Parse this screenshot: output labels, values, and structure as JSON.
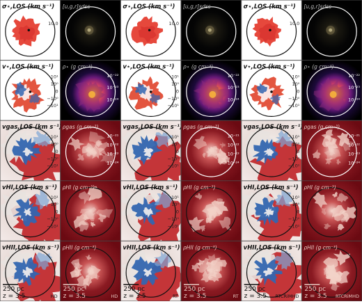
{
  "grid": {
    "rows": [
      {
        "id": "sigma",
        "vel_label": "σ⋆,LOS (km s⁻¹)",
        "vel_ticks": [
          "10.0"
        ],
        "den_label": "[u,g,r]sdss",
        "den_ticks": [],
        "den_style": "dark"
      },
      {
        "id": "vstar",
        "vel_label": "v⋆,LOS (km s⁻¹)",
        "vel_ticks": [
          "10¹",
          "10⁰",
          "0",
          "−10⁰",
          "−10¹"
        ],
        "den_label": "ρ⋆ (g cm⁻³)",
        "den_ticks": [
          "10⁻²²",
          "10⁻²³",
          "10⁻²⁴"
        ],
        "den_style": "stellar"
      },
      {
        "id": "vgas",
        "vel_label": "vgas,LOS (km s⁻¹)",
        "vel_ticks": [
          "10¹",
          "10⁰",
          "0",
          "−10⁰",
          "−10¹"
        ],
        "den_label": "ρgas (g cm⁻³)",
        "den_ticks": [
          "10⁻²¹",
          "10⁻²²",
          "10⁻²³",
          "10⁻²⁴"
        ],
        "den_style": "gas"
      },
      {
        "id": "vhi",
        "vel_label": "vHI,LOS (km s⁻¹)",
        "vel_ticks": [
          "10¹",
          "10⁰",
          "0",
          "−10⁰",
          "−10¹"
        ],
        "den_label": "ρHI (g cm⁻³)",
        "den_ticks": [],
        "den_style": "gas"
      },
      {
        "id": "vhii",
        "vel_label": "vHII,LOS (km s⁻¹)",
        "vel_ticks": [],
        "den_label": "ρHII (g cm⁻³)",
        "den_ticks": [],
        "den_style": "gas"
      }
    ],
    "columns": [
      {
        "model": "HD"
      },
      {
        "model": "RT"
      },
      {
        "model": "RTCRiMHD"
      }
    ],
    "scalebar": "250 pc",
    "redshift": "z = 3.5"
  },
  "colors": {
    "red": "#c0262a",
    "blue": "#3366b0",
    "white": "#f7f3ef",
    "deep_red": "#6b0a12",
    "black": "#000000"
  }
}
